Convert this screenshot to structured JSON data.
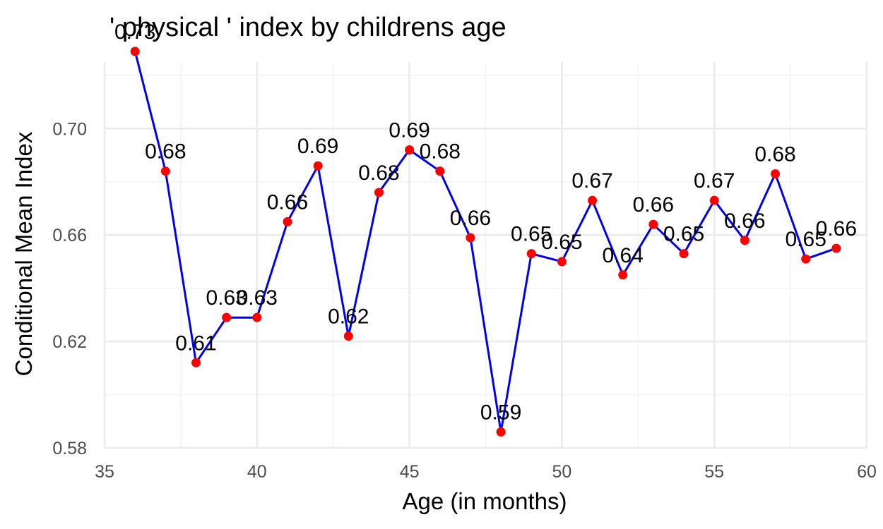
{
  "chart_data": {
    "type": "line",
    "title": "' physical ' index by childrens age",
    "xlabel": "Age (in months)",
    "ylabel": "Conditional Mean Index",
    "xlim": [
      35,
      60
    ],
    "ylim": [
      0.58,
      0.725
    ],
    "x_ticks": [
      35,
      40,
      45,
      50,
      55,
      60
    ],
    "x_tick_labels": [
      "35",
      "40",
      "45",
      "50",
      "55",
      "60"
    ],
    "y_ticks": [
      0.58,
      0.62,
      0.66,
      0.7
    ],
    "y_tick_labels": [
      "0.58",
      "0.62",
      "0.66",
      "0.70"
    ],
    "grid": true,
    "line_color": "#0000ee",
    "point_color": "#ff0000",
    "x": [
      36,
      37,
      38,
      39,
      40,
      41,
      42,
      43,
      44,
      45,
      46,
      47,
      48,
      49,
      50,
      51,
      52,
      53,
      54,
      55,
      56,
      57,
      58,
      59
    ],
    "values": [
      0.729,
      0.684,
      0.612,
      0.629,
      0.629,
      0.665,
      0.686,
      0.622,
      0.676,
      0.692,
      0.684,
      0.659,
      0.586,
      0.653,
      0.65,
      0.673,
      0.645,
      0.664,
      0.653,
      0.673,
      0.658,
      0.683,
      0.651,
      0.655
    ],
    "data_labels": [
      "0.73",
      "0.68",
      "0.61",
      "0.63",
      "0.63",
      "0.66",
      "0.69",
      "0.62",
      "0.68",
      "0.69",
      "0.68",
      "0.66",
      "0.59",
      "0.65",
      "0.65",
      "0.67",
      "0.64",
      "0.66",
      "0.65",
      "0.67",
      "0.66",
      "0.68",
      "0.65",
      "0.66"
    ]
  }
}
